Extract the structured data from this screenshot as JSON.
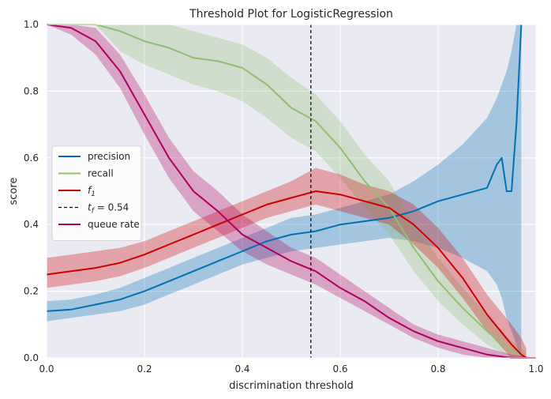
{
  "chart_data": {
    "type": "line",
    "title": "Threshold Plot for LogisticRegression",
    "xlabel": "discrimination threshold",
    "ylabel": "score",
    "xlim": [
      0,
      1
    ],
    "ylim": [
      0,
      1
    ],
    "xticks": [
      "0.0",
      "0.2",
      "0.4",
      "0.6",
      "0.8",
      "1.0"
    ],
    "yticks": [
      "0.0",
      "0.2",
      "0.4",
      "0.6",
      "0.8",
      "1.0"
    ],
    "grid": true,
    "legend_placement": "center-left",
    "threshold": 0.54,
    "colors": {
      "precision": "#0072b2",
      "recall": "#8fbf6f",
      "f1": "#cc0000",
      "threshold": "#000000",
      "queue_rate": "#b0005e"
    },
    "series": [
      {
        "key": "precision",
        "name": "precision",
        "x": [
          0.0,
          0.05,
          0.1,
          0.15,
          0.2,
          0.25,
          0.3,
          0.35,
          0.4,
          0.45,
          0.5,
          0.55,
          0.6,
          0.65,
          0.7,
          0.75,
          0.8,
          0.85,
          0.9,
          0.92,
          0.93,
          0.94,
          0.95,
          0.96,
          0.97
        ],
        "y": [
          0.14,
          0.145,
          0.16,
          0.175,
          0.2,
          0.23,
          0.26,
          0.29,
          0.32,
          0.35,
          0.37,
          0.38,
          0.4,
          0.41,
          0.42,
          0.44,
          0.47,
          0.49,
          0.51,
          0.58,
          0.6,
          0.5,
          0.5,
          0.7,
          1.0
        ],
        "lower": [
          0.11,
          0.12,
          0.13,
          0.14,
          0.16,
          0.19,
          0.22,
          0.25,
          0.28,
          0.3,
          0.32,
          0.33,
          0.34,
          0.35,
          0.36,
          0.35,
          0.33,
          0.3,
          0.26,
          0.22,
          0.18,
          0.12,
          0.08,
          0.04,
          0.0
        ],
        "upper": [
          0.17,
          0.175,
          0.19,
          0.21,
          0.24,
          0.27,
          0.3,
          0.33,
          0.36,
          0.39,
          0.42,
          0.43,
          0.45,
          0.47,
          0.49,
          0.53,
          0.58,
          0.64,
          0.72,
          0.78,
          0.82,
          0.86,
          0.92,
          1.0,
          1.0
        ]
      },
      {
        "key": "recall",
        "name": "recall",
        "x": [
          0.0,
          0.05,
          0.1,
          0.15,
          0.2,
          0.25,
          0.3,
          0.35,
          0.4,
          0.45,
          0.5,
          0.55,
          0.6,
          0.65,
          0.7,
          0.75,
          0.8,
          0.85,
          0.9,
          0.95,
          0.97,
          0.98
        ],
        "y": [
          1.0,
          1.0,
          1.0,
          0.98,
          0.95,
          0.93,
          0.9,
          0.89,
          0.87,
          0.82,
          0.75,
          0.71,
          0.63,
          0.53,
          0.45,
          0.33,
          0.23,
          0.15,
          0.08,
          0.02,
          0.01,
          0.0
        ],
        "lower": [
          1.0,
          1.0,
          1.0,
          0.92,
          0.88,
          0.85,
          0.82,
          0.8,
          0.77,
          0.72,
          0.66,
          0.62,
          0.54,
          0.45,
          0.37,
          0.26,
          0.17,
          0.1,
          0.04,
          0.0,
          0.0,
          0.0
        ],
        "upper": [
          1.0,
          1.0,
          1.0,
          1.0,
          1.0,
          1.0,
          0.98,
          0.96,
          0.94,
          0.9,
          0.84,
          0.79,
          0.71,
          0.61,
          0.53,
          0.4,
          0.3,
          0.21,
          0.13,
          0.05,
          0.03,
          0.02
        ]
      },
      {
        "key": "f1",
        "name": "f1",
        "x": [
          0.0,
          0.05,
          0.1,
          0.15,
          0.2,
          0.25,
          0.3,
          0.35,
          0.4,
          0.45,
          0.5,
          0.55,
          0.6,
          0.65,
          0.7,
          0.75,
          0.8,
          0.85,
          0.9,
          0.95,
          0.97,
          0.98
        ],
        "y": [
          0.25,
          0.26,
          0.27,
          0.285,
          0.31,
          0.34,
          0.37,
          0.4,
          0.43,
          0.46,
          0.48,
          0.5,
          0.49,
          0.47,
          0.45,
          0.4,
          0.33,
          0.24,
          0.13,
          0.04,
          0.01,
          0.0
        ],
        "lower": [
          0.21,
          0.22,
          0.23,
          0.245,
          0.27,
          0.3,
          0.33,
          0.36,
          0.39,
          0.42,
          0.44,
          0.46,
          0.44,
          0.42,
          0.4,
          0.34,
          0.27,
          0.18,
          0.08,
          0.0,
          0.0,
          0.0
        ],
        "upper": [
          0.3,
          0.31,
          0.32,
          0.33,
          0.35,
          0.38,
          0.41,
          0.44,
          0.47,
          0.5,
          0.53,
          0.57,
          0.55,
          0.52,
          0.5,
          0.46,
          0.39,
          0.3,
          0.19,
          0.1,
          0.06,
          0.03
        ]
      },
      {
        "key": "queue_rate",
        "name": "queue rate",
        "x": [
          0.0,
          0.05,
          0.1,
          0.15,
          0.2,
          0.25,
          0.3,
          0.35,
          0.4,
          0.45,
          0.5,
          0.55,
          0.6,
          0.65,
          0.7,
          0.75,
          0.8,
          0.85,
          0.9,
          0.95,
          1.0
        ],
        "y": [
          1.0,
          0.99,
          0.95,
          0.86,
          0.73,
          0.6,
          0.5,
          0.44,
          0.37,
          0.33,
          0.29,
          0.26,
          0.21,
          0.17,
          0.12,
          0.08,
          0.05,
          0.03,
          0.01,
          0.0,
          0.0
        ],
        "lower": [
          1.0,
          0.97,
          0.91,
          0.81,
          0.67,
          0.54,
          0.44,
          0.38,
          0.32,
          0.28,
          0.25,
          0.22,
          0.18,
          0.14,
          0.1,
          0.06,
          0.03,
          0.01,
          0.0,
          0.0,
          0.0
        ],
        "upper": [
          1.0,
          1.0,
          0.99,
          0.91,
          0.79,
          0.66,
          0.56,
          0.5,
          0.43,
          0.38,
          0.33,
          0.3,
          0.25,
          0.2,
          0.15,
          0.1,
          0.07,
          0.05,
          0.03,
          0.01,
          0.0
        ]
      }
    ],
    "legend": [
      {
        "key": "precision",
        "label": "precision"
      },
      {
        "key": "recall",
        "label": "recall"
      },
      {
        "key": "f1",
        "label": "f",
        "sub": "1"
      },
      {
        "key": "threshold",
        "label": "t",
        "sub": "f",
        "suffix": " = 0.54"
      },
      {
        "key": "queue_rate",
        "label": "queue rate"
      }
    ]
  }
}
